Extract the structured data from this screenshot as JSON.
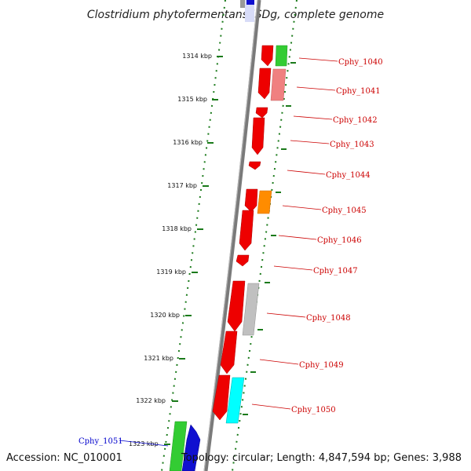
{
  "title": "Clostridium phytofermentans ISDg, complete genome",
  "accession": "Accession: NC_010001",
  "topology": "Topology: circular; Length: 4,847,594 bp; Genes: 3,988",
  "colors": {
    "backbone": "#7a7a7a",
    "ruler_ticks": "#1a7a1a",
    "label_red": "#cc0000",
    "label_blue": "#0000cc"
  },
  "kbp_labels": [
    "1314 kbp",
    "1315 kbp",
    "1316 kbp",
    "1317 kbp",
    "1318 kbp",
    "1319 kbp",
    "1320 kbp",
    "1321 kbp",
    "1322 kbp",
    "1323 kbp"
  ],
  "gene_labels": [
    "Cphy_1040",
    "Cphy_1041",
    "Cphy_1042",
    "Cphy_1043",
    "Cphy_1044",
    "Cphy_1045",
    "Cphy_1046",
    "Cphy_1047",
    "Cphy_1048",
    "Cphy_1049",
    "Cphy_1050",
    "Cphy_1051"
  ]
}
